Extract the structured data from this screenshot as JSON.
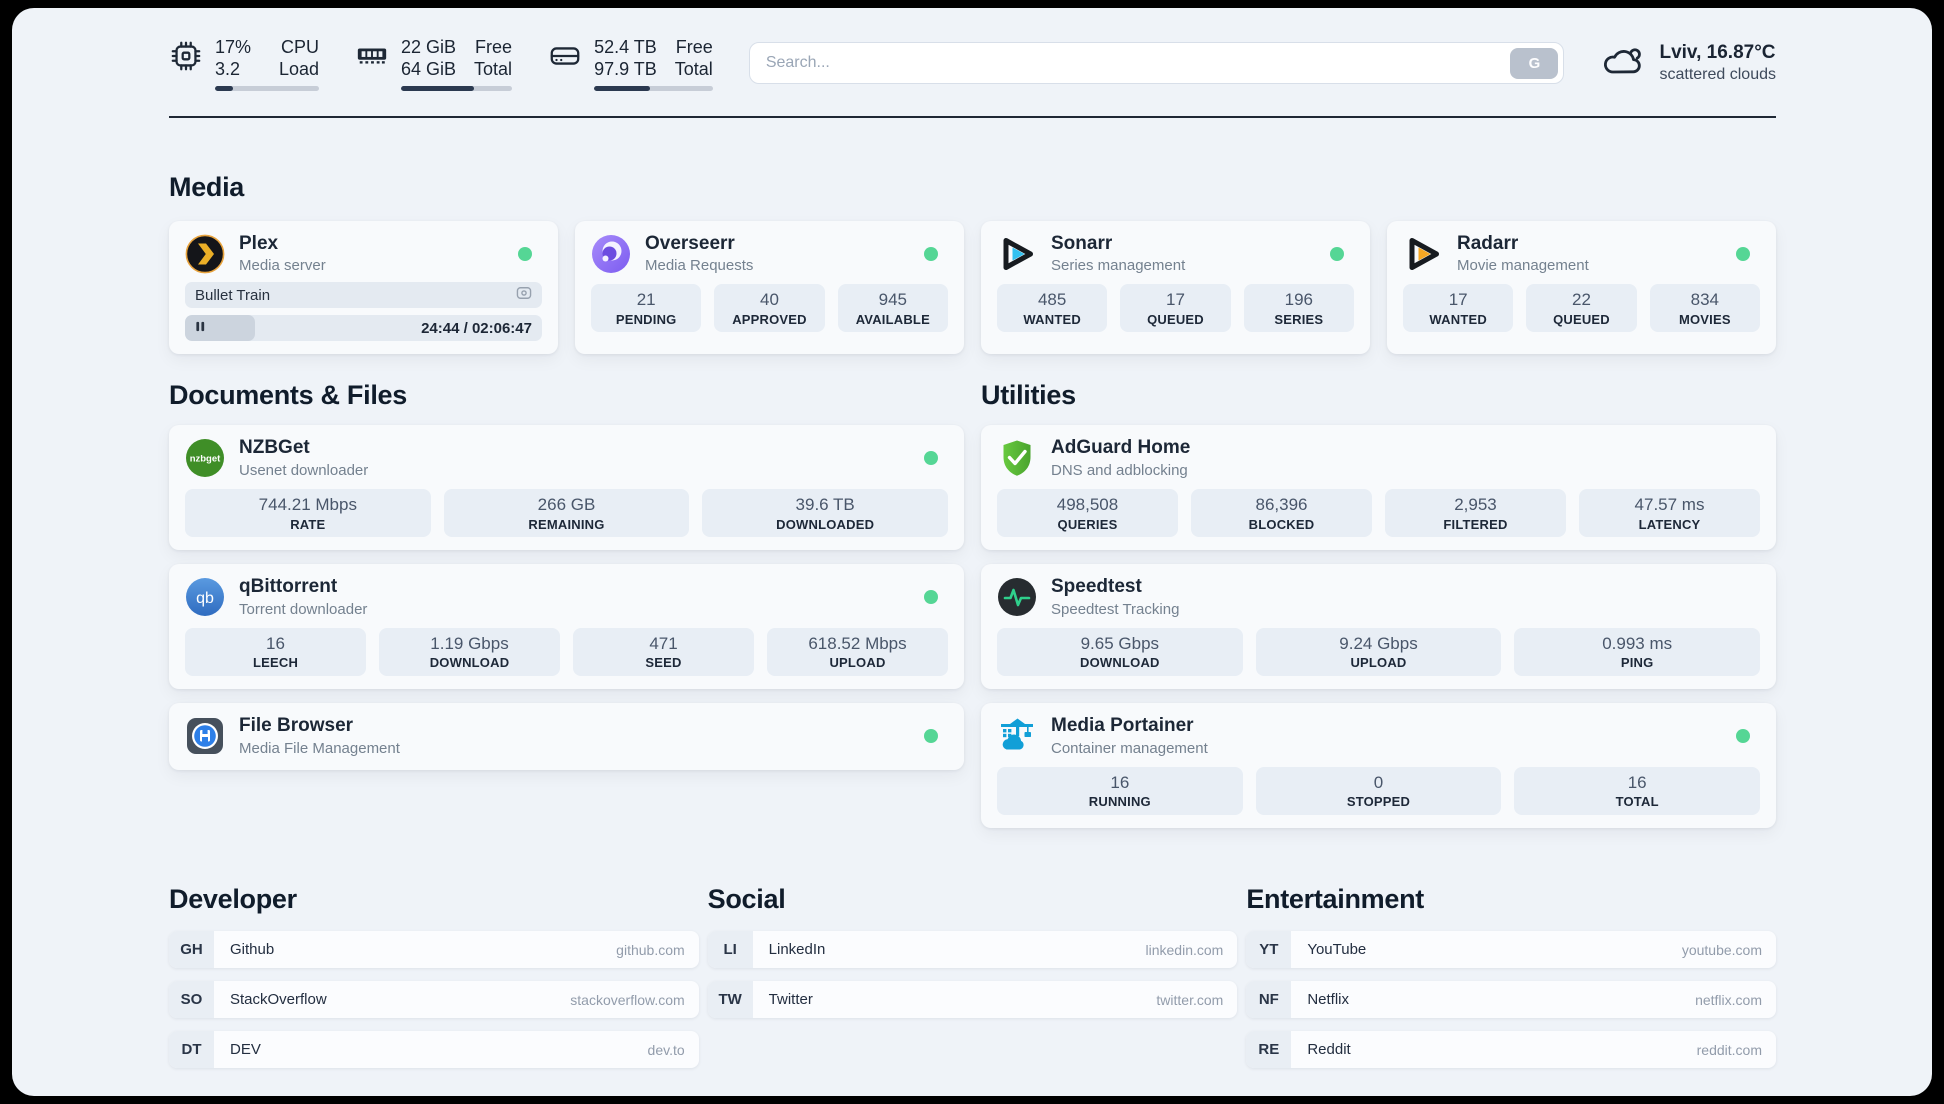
{
  "topbar": {
    "resources": [
      {
        "icon": "cpu-icon",
        "col1": [
          "17%",
          "3.2"
        ],
        "col2": [
          "CPU",
          "Load"
        ],
        "progress_pct": 17
      },
      {
        "icon": "ram-icon",
        "col1": [
          "22 GiB",
          "64 GiB"
        ],
        "col2": [
          "Free",
          "Total"
        ],
        "progress_pct": 66
      },
      {
        "icon": "disk-icon",
        "col1": [
          "52.4 TB",
          "97.9 TB"
        ],
        "col2": [
          "Free",
          "Total"
        ],
        "progress_pct": 47
      }
    ],
    "search": {
      "placeholder": "Search...",
      "button_label": "G"
    },
    "weather": {
      "icon": "cloud-icon",
      "location_temp": "Lviv, 16.87°C",
      "condition": "scattered clouds"
    }
  },
  "media": {
    "heading": "Media",
    "plex": {
      "title": "Plex",
      "subtitle": "Media server",
      "online": true,
      "now_playing": "Bullet Train",
      "time": "24:44 / 02:06:47",
      "progress_pct": 19.5
    },
    "overseerr": {
      "title": "Overseerr",
      "subtitle": "Media Requests",
      "online": true,
      "stats": [
        {
          "value": "21",
          "label": "PENDING"
        },
        {
          "value": "40",
          "label": "APPROVED"
        },
        {
          "value": "945",
          "label": "AVAILABLE"
        }
      ]
    },
    "sonarr": {
      "title": "Sonarr",
      "subtitle": "Series management",
      "online": true,
      "stats": [
        {
          "value": "485",
          "label": "WANTED"
        },
        {
          "value": "17",
          "label": "QUEUED"
        },
        {
          "value": "196",
          "label": "SERIES"
        }
      ]
    },
    "radarr": {
      "title": "Radarr",
      "subtitle": "Movie management",
      "online": true,
      "stats": [
        {
          "value": "17",
          "label": "WANTED"
        },
        {
          "value": "22",
          "label": "QUEUED"
        },
        {
          "value": "834",
          "label": "MOVIES"
        }
      ]
    }
  },
  "documents": {
    "heading": "Documents & Files",
    "nzbget": {
      "title": "NZBGet",
      "subtitle": "Usenet downloader",
      "online": true,
      "stats": [
        {
          "value": "744.21 Mbps",
          "label": "RATE"
        },
        {
          "value": "266 GB",
          "label": "REMAINING"
        },
        {
          "value": "39.6 TB",
          "label": "DOWNLOADED"
        }
      ]
    },
    "qbittorrent": {
      "title": "qBittorrent",
      "subtitle": "Torrent downloader",
      "online": true,
      "stats": [
        {
          "value": "16",
          "label": "LEECH"
        },
        {
          "value": "1.19 Gbps",
          "label": "DOWNLOAD"
        },
        {
          "value": "471",
          "label": "SEED"
        },
        {
          "value": "618.52 Mbps",
          "label": "UPLOAD"
        }
      ]
    },
    "filebrowser": {
      "title": "File Browser",
      "subtitle": "Media File Management",
      "online": true
    }
  },
  "utilities": {
    "heading": "Utilities",
    "adguard": {
      "title": "AdGuard Home",
      "subtitle": "DNS and adblocking",
      "stats": [
        {
          "value": "498,508",
          "label": "QUERIES"
        },
        {
          "value": "86,396",
          "label": "BLOCKED"
        },
        {
          "value": "2,953",
          "label": "FILTERED"
        },
        {
          "value": "47.57 ms",
          "label": "LATENCY"
        }
      ]
    },
    "speedtest": {
      "title": "Speedtest",
      "subtitle": "Speedtest Tracking",
      "stats": [
        {
          "value": "9.65 Gbps",
          "label": "DOWNLOAD"
        },
        {
          "value": "9.24 Gbps",
          "label": "UPLOAD"
        },
        {
          "value": "0.993 ms",
          "label": "PING"
        }
      ]
    },
    "portainer": {
      "title": "Media Portainer",
      "subtitle": "Container management",
      "online": true,
      "stats": [
        {
          "value": "16",
          "label": "RUNNING"
        },
        {
          "value": "0",
          "label": "STOPPED"
        },
        {
          "value": "16",
          "label": "TOTAL"
        }
      ]
    }
  },
  "bookmarks": [
    {
      "heading": "Developer",
      "items": [
        {
          "abbr": "GH",
          "name": "Github",
          "url": "github.com"
        },
        {
          "abbr": "SO",
          "name": "StackOverflow",
          "url": "stackoverflow.com"
        },
        {
          "abbr": "DT",
          "name": "DEV",
          "url": "dev.to"
        }
      ]
    },
    {
      "heading": "Social",
      "items": [
        {
          "abbr": "LI",
          "name": "LinkedIn",
          "url": "linkedin.com"
        },
        {
          "abbr": "TW",
          "name": "Twitter",
          "url": "twitter.com"
        }
      ]
    },
    {
      "heading": "Entertainment",
      "items": [
        {
          "abbr": "YT",
          "name": "YouTube",
          "url": "youtube.com"
        },
        {
          "abbr": "NF",
          "name": "Netflix",
          "url": "netflix.com"
        },
        {
          "abbr": "RE",
          "name": "Reddit",
          "url": "reddit.com"
        }
      ]
    }
  ],
  "colors": {
    "status_online": "#55d695",
    "progress_fill": "#2b3950",
    "accent_divider": "#1f2835"
  }
}
